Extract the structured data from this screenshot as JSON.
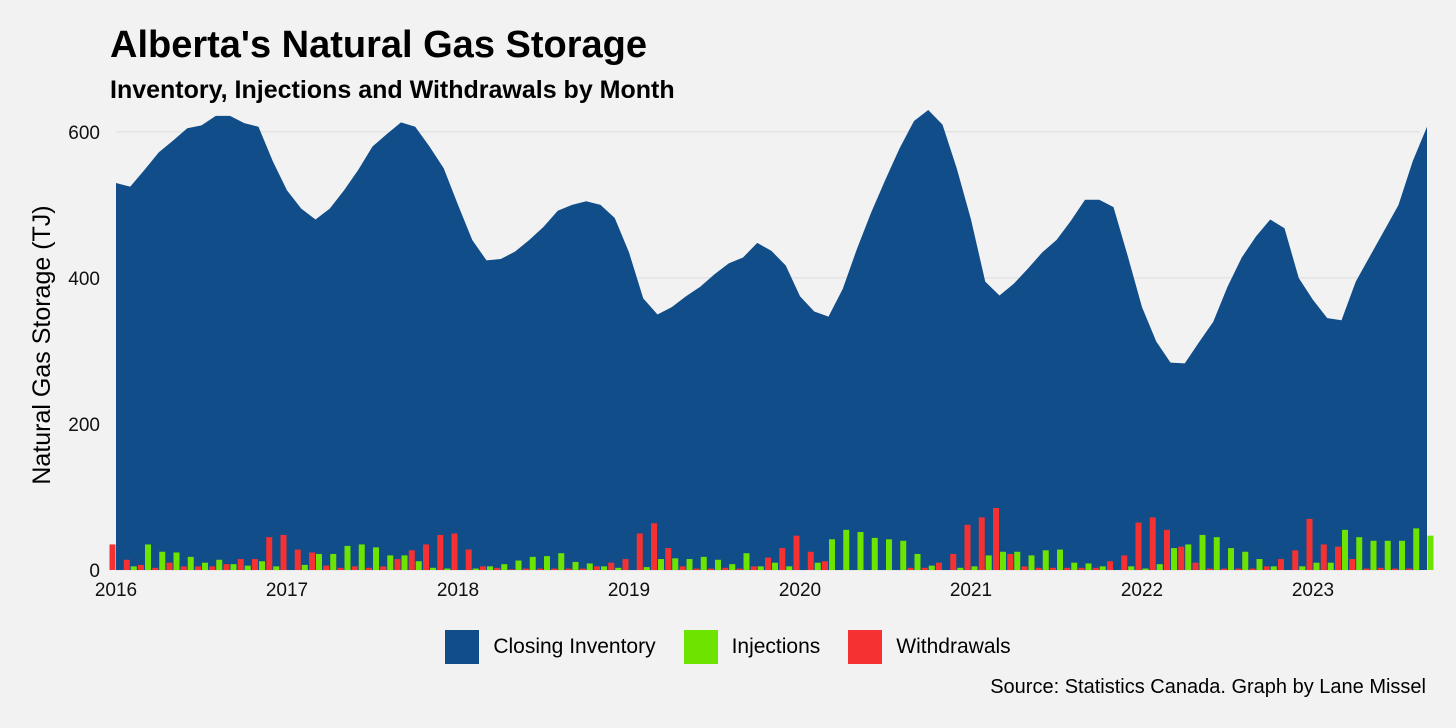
{
  "chart_data": {
    "type": "area",
    "title": "Alberta's Natural Gas Storage",
    "subtitle": "Inventory, Injections and Withdrawals by Month",
    "ylabel": "Natural Gas Storage (TJ)",
    "xlabel": "",
    "caption": "Source: Statistics Canada. Graph by Lane Missel",
    "ylim": [
      0,
      630
    ],
    "yticks": [
      0,
      200,
      400,
      600
    ],
    "xticks": [
      "2016",
      "2017",
      "2018",
      "2019",
      "2020",
      "2021",
      "2022",
      "2023"
    ],
    "grid": true,
    "legend_position": "bottom",
    "start_year": 2016,
    "colors": {
      "inventory": "#114d89",
      "injections": "#6ce400",
      "withdrawals": "#f53131",
      "background": "#f2f2f2"
    },
    "series": [
      {
        "name": "Closing Inventory",
        "type": "area",
        "values": [
          530,
          525,
          548,
          572,
          588,
          605,
          609,
          622,
          622,
          612,
          607,
          560,
          520,
          495,
          480,
          495,
          520,
          548,
          580,
          597,
          613,
          607,
          580,
          550,
          500,
          452,
          424,
          426,
          436,
          452,
          470,
          492,
          500,
          505,
          500,
          482,
          435,
          372,
          350,
          360,
          375,
          388,
          405,
          420,
          428,
          448,
          437,
          417,
          375,
          354,
          347,
          385,
          440,
          490,
          535,
          578,
          615,
          630,
          610,
          550,
          480,
          395,
          376,
          392,
          413,
          435,
          452,
          478,
          507,
          507,
          497,
          430,
          360,
          313,
          284,
          283,
          312,
          340,
          388,
          428,
          457,
          480,
          468,
          400,
          370,
          345,
          342,
          395,
          430,
          465,
          500,
          560,
          607
        ]
      },
      {
        "name": "Injections",
        "type": "bar",
        "values": [
          0,
          5,
          35,
          25,
          24,
          18,
          10,
          14,
          8,
          6,
          12,
          5,
          0,
          7,
          22,
          22,
          33,
          35,
          31,
          20,
          20,
          12,
          3,
          2,
          0,
          2,
          5,
          8,
          13,
          18,
          19,
          23,
          11,
          9,
          5,
          3,
          0,
          4,
          15,
          16,
          15,
          18,
          14,
          8,
          23,
          5,
          10,
          5,
          0,
          10,
          42,
          55,
          52,
          44,
          42,
          40,
          22,
          6,
          0,
          3,
          5,
          20,
          25,
          25,
          20,
          27,
          28,
          10,
          9,
          5,
          0,
          5,
          2,
          8,
          30,
          35,
          48,
          45,
          30,
          25,
          15,
          5,
          0,
          5,
          10,
          10,
          55,
          45,
          40,
          40,
          40,
          57,
          47
        ]
      },
      {
        "name": "Withdrawals",
        "type": "bar",
        "values": [
          35,
          14,
          7,
          3,
          10,
          5,
          5,
          5,
          8,
          15,
          15,
          45,
          48,
          28,
          24,
          6,
          3,
          5,
          3,
          5,
          15,
          27,
          35,
          48,
          50,
          28,
          5,
          3,
          1,
          2,
          2,
          2,
          2,
          2,
          5,
          10,
          15,
          50,
          64,
          30,
          5,
          2,
          2,
          3,
          2,
          5,
          17,
          30,
          47,
          25,
          12,
          0,
          0,
          0,
          0,
          0,
          3,
          3,
          10,
          22,
          62,
          72,
          85,
          22,
          5,
          3,
          3,
          3,
          3,
          3,
          12,
          20,
          65,
          72,
          55,
          32,
          10,
          2,
          2,
          2,
          2,
          5,
          15,
          27,
          70,
          35,
          32,
          15,
          2,
          3,
          2,
          2,
          0
        ]
      }
    ]
  }
}
